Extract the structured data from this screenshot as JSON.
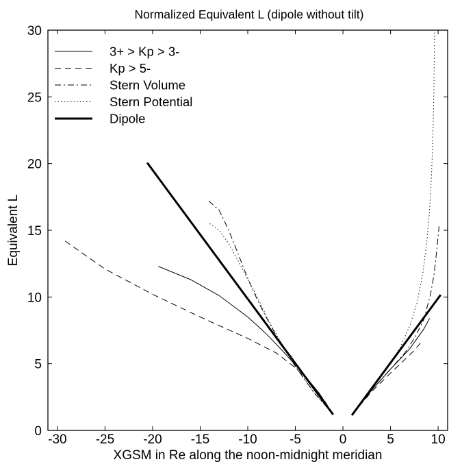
{
  "chart_data": {
    "type": "line",
    "title": "Normalized Equivalent L (dipole without tilt)",
    "xlabel": "XGSM in Re along the noon-midnight meridian",
    "ylabel": "Equivalent L",
    "xlim": [
      -31,
      11
    ],
    "ylim": [
      0,
      30
    ],
    "xticks": [
      -30,
      -25,
      -20,
      -15,
      -10,
      -5,
      0,
      5,
      10
    ],
    "yticks": [
      0,
      5,
      10,
      15,
      20,
      25,
      30
    ],
    "grid": false,
    "legend_position": "top-left",
    "series": [
      {
        "name": "3+ > Kp > 3-",
        "style": "solid",
        "width": 1,
        "segments": [
          [
            [
              -19.4,
              12.3
            ],
            [
              -16,
              11.3
            ],
            [
              -13,
              10.1
            ],
            [
              -10,
              8.5
            ],
            [
              -8,
              7.2
            ],
            [
              -6,
              5.7
            ],
            [
              -4,
              4.1
            ],
            [
              -2.5,
              2.8
            ],
            [
              -1.1,
              1.25
            ]
          ],
          [
            [
              1,
              1.2
            ],
            [
              3,
              3.0
            ],
            [
              5,
              4.6
            ],
            [
              7,
              6.1
            ],
            [
              8.5,
              7.6
            ],
            [
              9.1,
              8.4
            ]
          ]
        ]
      },
      {
        "name": "Kp > 5-",
        "style": "dashed",
        "width": 1,
        "segments": [
          [
            [
              -29.2,
              14.2
            ],
            [
              -25,
              12.1
            ],
            [
              -20,
              10.2
            ],
            [
              -15,
              8.5
            ],
            [
              -10,
              6.9
            ],
            [
              -7,
              5.8
            ],
            [
              -5,
              4.7
            ],
            [
              -3.5,
              3.6
            ],
            [
              -2,
              2.3
            ],
            [
              -1.1,
              1.25
            ]
          ],
          [
            [
              1,
              1.2
            ],
            [
              3,
              2.9
            ],
            [
              5,
              4.3
            ],
            [
              6.5,
              5.3
            ],
            [
              7.5,
              6.0
            ],
            [
              8.2,
              6.6
            ]
          ]
        ]
      },
      {
        "name": "Stern Volume",
        "style": "dashdot",
        "width": 1,
        "segments": [
          [
            [
              -14.1,
              17.2
            ],
            [
              -13,
              16.5
            ],
            [
              -12,
              15.0
            ],
            [
              -11,
              13.2
            ],
            [
              -10,
              11.4
            ],
            [
              -9,
              9.8
            ],
            [
              -8,
              8.4
            ],
            [
              -7,
              7.1
            ],
            [
              -6,
              6.0
            ],
            [
              -5,
              4.8
            ],
            [
              -4,
              3.8
            ],
            [
              -3,
              2.8
            ],
            [
              -2,
              2.0
            ],
            [
              -1.1,
              1.25
            ]
          ],
          [
            [
              1,
              1.2
            ],
            [
              3,
              3.0
            ],
            [
              5,
              4.6
            ],
            [
              6.5,
              5.8
            ],
            [
              7.5,
              6.9
            ],
            [
              8.5,
              8.3
            ],
            [
              9.2,
              10.2
            ],
            [
              9.6,
              11.8
            ],
            [
              9.9,
              13.8
            ],
            [
              10.1,
              15.3
            ]
          ]
        ]
      },
      {
        "name": "Stern Potential",
        "style": "dotted",
        "width": 1,
        "segments": [
          [
            [
              -14,
              15.5
            ],
            [
              -13,
              15.0
            ],
            [
              -12,
              14.0
            ],
            [
              -11,
              12.7
            ],
            [
              -10,
              11.3
            ],
            [
              -9,
              10.0
            ],
            [
              -8,
              8.5
            ],
            [
              -7,
              7.2
            ],
            [
              -6,
              6.0
            ],
            [
              -5,
              4.8
            ],
            [
              -4,
              3.8
            ],
            [
              -3,
              2.8
            ],
            [
              -2,
              2.0
            ],
            [
              -1.1,
              1.25
            ]
          ],
          [
            [
              1,
              1.2
            ],
            [
              3,
              3.2
            ],
            [
              5,
              5.0
            ],
            [
              6,
              6.2
            ],
            [
              7,
              7.8
            ],
            [
              7.8,
              9.6
            ],
            [
              8.4,
              11.8
            ],
            [
              8.8,
              14.0
            ],
            [
              9.1,
              16.5
            ],
            [
              9.3,
              19.0
            ],
            [
              9.45,
              22.0
            ],
            [
              9.55,
              25.0
            ],
            [
              9.6,
              28.0
            ],
            [
              9.63,
              30
            ]
          ]
        ]
      },
      {
        "name": "Dipole",
        "style": "solid",
        "width": 3,
        "segments": [
          [
            [
              -20.5,
              20
            ],
            [
              -1.1,
              1.25
            ]
          ],
          [
            [
              1,
              1.2
            ],
            [
              10.2,
              10.1
            ]
          ]
        ]
      }
    ]
  }
}
